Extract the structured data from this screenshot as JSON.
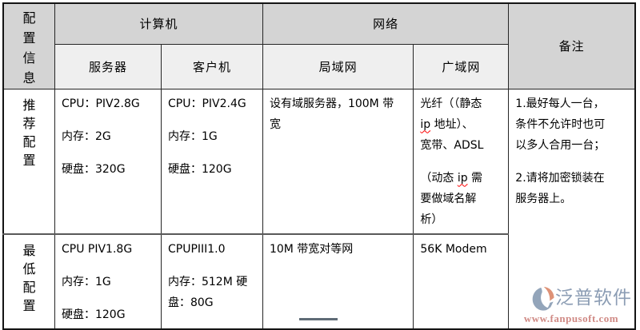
{
  "palette": {
    "header_dark": "#d4d4d4",
    "header_light": "#efefef",
    "border": "#262626",
    "row_divider": "#595959",
    "spellcheck_red": "#ff0000",
    "brand_gray_blue": "#8c9db4",
    "brand_salmon": "#de9277",
    "url_pink": "#d08a85"
  },
  "table": {
    "corner_label": "配\n置\n信\n息",
    "groups": {
      "computer": "计算机",
      "network": "网络",
      "notes": "备注"
    },
    "subheaders": {
      "server": "服务器",
      "client": "客户机",
      "lan": "局域网",
      "wan": "广域网"
    },
    "rows": [
      {
        "label": "推\n荐\n配\n置",
        "server": [
          [
            {
              "t": "CPU：PIV2.8G"
            }
          ],
          [
            {
              "t": "内存：2G"
            }
          ],
          [
            {
              "t": "硬盘：320G"
            }
          ]
        ],
        "client": [
          [
            {
              "t": "CPU：PIV2.4G"
            }
          ],
          [
            {
              "t": "内存：1G"
            }
          ],
          [
            {
              "t": "硬盘：120G"
            }
          ]
        ],
        "lan": [
          [
            {
              "t": "设有域服务器，100M 带\n宽"
            }
          ]
        ],
        "wan": [
          [
            {
              "t": "光纤（（静态\n"
            },
            {
              "t": "ip",
              "w": true
            },
            {
              "t": " 地址）、\n宽带、ADSL"
            }
          ],
          [
            {
              "t": "（动态 "
            },
            {
              "t": "ip",
              "w": true
            },
            {
              "t": " 需\n要做域名解\n析）"
            }
          ]
        ]
      },
      {
        "label": "最\n低\n配\n置",
        "server": [
          [
            {
              "t": "CPU PIV1.8G"
            }
          ],
          [
            {
              "t": "内存：1G"
            }
          ],
          [
            {
              "t": "硬盘：120G"
            }
          ]
        ],
        "client": [
          [
            {
              "t": "CPUPIII1.0"
            }
          ],
          [
            {
              "t": "内存：512M 硬\n盘：80G"
            }
          ]
        ],
        "lan": [
          [
            {
              "t": "10M 带宽对等网"
            }
          ]
        ],
        "wan": [
          [
            {
              "t": "56K Modem"
            }
          ]
        ]
      }
    ],
    "notes": [
      [
        {
          "t": "1.最好每人一台，\n条件不允许时也可\n以多人合用一台；"
        }
      ],
      [
        {
          "t": "2.请将加密锁装在\n服务器上。"
        }
      ]
    ]
  },
  "watermark": {
    "brand": "泛普软件",
    "url": "www.fanpusoft.com"
  }
}
